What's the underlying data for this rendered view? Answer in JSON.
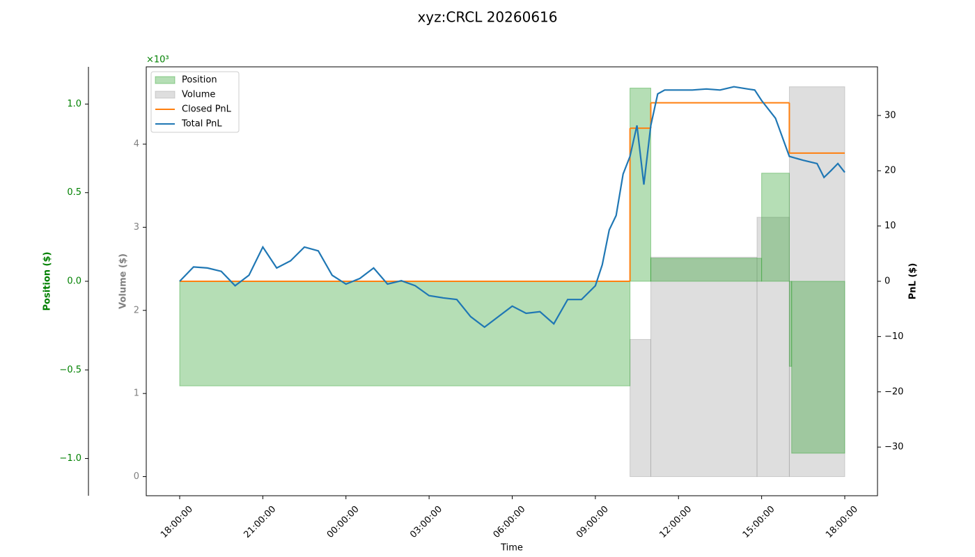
{
  "chart_data": {
    "type": "line",
    "title": "xyz:CRCL 20260616",
    "xlabel": "Time",
    "ylabel": "Position ($)",
    "y2label": "PnL ($)",
    "y3label": "Volume ($)",
    "y3_offset_label": "×10³",
    "ycolor": "green",
    "y3color": "gray",
    "y2color": "black",
    "xticks": [
      "18:00:00",
      "21:00:00",
      "00:00:00",
      "03:00:00",
      "06:00:00",
      "09:00:00",
      "12:00:00",
      "15:00:00",
      "18:00:00"
    ],
    "ylim": [
      -1.21,
      1.21
    ],
    "yticks": [
      {
        "value": -1.0,
        "label": "−1.0"
      },
      {
        "value": -0.5,
        "label": "−0.5"
      },
      {
        "value": 0,
        "label": "0.0"
      },
      {
        "value": 0.5,
        "label": "0.5"
      },
      {
        "value": 1.0,
        "label": "1.0"
      }
    ],
    "y3lim": [
      -0.23,
      4.93
    ],
    "y3ticks": [
      0,
      1,
      2,
      3,
      4
    ],
    "y2lim": [
      -38.8,
      38.8
    ],
    "y2ticks": [
      {
        "value": -30,
        "label": "−30"
      },
      {
        "value": -20,
        "label": "−20"
      },
      {
        "value": -10,
        "label": "−10"
      },
      0,
      10,
      20,
      30
    ],
    "legend": "upper left",
    "series": [
      {
        "name": "Position",
        "color": "#2ca02c",
        "kind": "area",
        "step": true,
        "axis": "y",
        "x": [
          "18:00",
          "10:15",
          "11:00",
          "15:00",
          "16:00",
          "16:05",
          "18:00"
        ],
        "values": [
          -0.59,
          1.09,
          0.13,
          0.61,
          -0.48,
          -0.97,
          -0.97
        ]
      },
      {
        "name": "Volume",
        "color": "#a0a0a0",
        "kind": "area",
        "step": true,
        "axis": "y3",
        "x": [
          "18:00",
          "10:15",
          "11:00",
          "14:50",
          "16:00",
          "18:00"
        ],
        "values": [
          0,
          1.65,
          2.64,
          3.12,
          4.69,
          4.69
        ]
      },
      {
        "name": "Closed PnL",
        "color": "#ff7f0e",
        "kind": "line",
        "step": true,
        "axis": "y2",
        "x": [
          "18:00",
          "10:15",
          "11:00",
          "16:00",
          "18:00"
        ],
        "values": [
          0,
          27.7,
          32.3,
          23.2,
          23.2
        ]
      },
      {
        "name": "Total PnL",
        "color": "#1f77b4",
        "kind": "line",
        "step": false,
        "axis": "y2",
        "x": [
          "18:00",
          "18:30",
          "19:00",
          "19:30",
          "20:00",
          "20:30",
          "21:00",
          "21:30",
          "22:00",
          "22:30",
          "23:00",
          "23:30",
          "00:00",
          "00:30",
          "01:00",
          "01:30",
          "02:00",
          "02:30",
          "03:00",
          "03:30",
          "04:00",
          "04:30",
          "05:00",
          "05:30",
          "06:00",
          "06:30",
          "07:00",
          "07:30",
          "08:00",
          "08:30",
          "09:00",
          "09:15",
          "09:30",
          "09:45",
          "10:00",
          "10:15",
          "10:30",
          "10:45",
          "11:00",
          "11:15",
          "11:30",
          "12:00",
          "12:30",
          "13:00",
          "13:30",
          "14:00",
          "14:30",
          "14:45",
          "15:00",
          "15:30",
          "16:00",
          "16:30",
          "17:00",
          "17:15",
          "17:30",
          "17:45",
          "18:00"
        ],
        "values": [
          0,
          2.6,
          2.4,
          1.8,
          -0.8,
          1.1,
          6.2,
          2.4,
          3.7,
          6.2,
          5.5,
          1.1,
          -0.5,
          0.5,
          2.4,
          -0.5,
          0.1,
          -0.8,
          -2.6,
          -3.0,
          -3.3,
          -6.4,
          -8.3,
          -6.4,
          -4.5,
          -5.8,
          -5.5,
          -7.7,
          -3.3,
          -3.3,
          -0.8,
          3.0,
          9.3,
          11.9,
          19.4,
          22.6,
          28.2,
          17.5,
          28.2,
          33.9,
          34.6,
          34.6,
          34.6,
          34.8,
          34.6,
          35.2,
          34.8,
          34.6,
          32.7,
          29.5,
          22.6,
          21.9,
          21.3,
          18.8,
          20.0,
          21.3,
          19.7
        ]
      }
    ]
  }
}
